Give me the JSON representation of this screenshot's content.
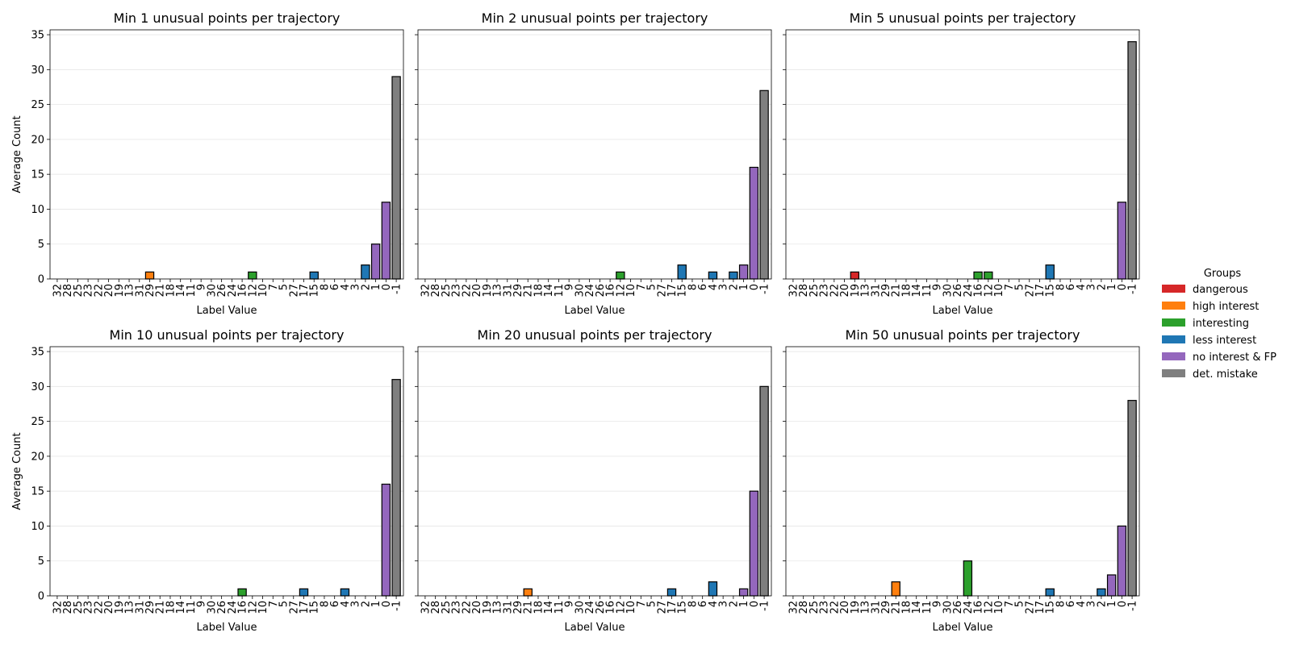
{
  "legend": {
    "title": "Groups",
    "placement": "right-center",
    "items": [
      {
        "label": "dangerous",
        "color": "#d62728"
      },
      {
        "label": "high interest",
        "color": "#ff7f0e"
      },
      {
        "label": "interesting",
        "color": "#2ca02c"
      },
      {
        "label": "less interest",
        "color": "#1f77b4"
      },
      {
        "label": "no interest & FP",
        "color": "#9467bd"
      },
      {
        "label": "det. mistake",
        "color": "#7f7f7f"
      }
    ]
  },
  "chart_data": [
    {
      "type": "bar",
      "title": "Min 1 unusual points per trajectory",
      "xlabel": "Label Value",
      "ylabel": "Average Count",
      "ylim": [
        0,
        35.7
      ],
      "yticks": [
        0,
        5,
        10,
        15,
        20,
        25,
        30,
        35
      ],
      "grid": "y",
      "categories": [
        "32",
        "28",
        "25",
        "23",
        "22",
        "20",
        "19",
        "13",
        "31",
        "29",
        "21",
        "18",
        "14",
        "11",
        "9",
        "30",
        "26",
        "24",
        "16",
        "12",
        "10",
        "7",
        "5",
        "27",
        "17",
        "15",
        "8",
        "6",
        "4",
        "3",
        "2",
        "1",
        "0",
        "-1"
      ],
      "values": [
        0,
        0,
        0,
        0,
        0,
        0,
        0,
        0,
        0,
        1,
        0,
        0,
        0,
        0,
        0,
        0,
        0,
        0,
        0,
        1,
        0,
        0,
        0,
        0,
        0,
        1,
        0,
        0,
        0,
        0,
        2,
        5,
        11,
        29
      ],
      "groups": [
        "interesting",
        "less interest",
        "less interest",
        "less interest",
        "less interest",
        "less interest",
        "dangerous",
        "less interest",
        "less interest",
        "high interest",
        "high interest",
        "high interest",
        "less interest",
        "less interest",
        "less interest",
        "less interest",
        "less interest",
        "interesting",
        "interesting",
        "interesting",
        "less interest",
        "less interest",
        "less interest",
        "less interest",
        "less interest",
        "less interest",
        "less interest",
        "less interest",
        "less interest",
        "less interest",
        "less interest",
        "no interest & FP",
        "no interest & FP",
        "det. mistake"
      ]
    },
    {
      "type": "bar",
      "title": "Min 2 unusual points per trajectory",
      "xlabel": "Label Value",
      "ylabel": "",
      "ylim": [
        0,
        35.7
      ],
      "yticks": [
        0,
        5,
        10,
        15,
        20,
        25,
        30,
        35
      ],
      "grid": "y",
      "categories": [
        "32",
        "28",
        "25",
        "23",
        "22",
        "20",
        "19",
        "13",
        "31",
        "29",
        "21",
        "18",
        "14",
        "11",
        "9",
        "30",
        "24",
        "26",
        "16",
        "12",
        "10",
        "7",
        "5",
        "27",
        "17",
        "15",
        "8",
        "6",
        "4",
        "3",
        "2",
        "1",
        "0",
        "-1"
      ],
      "values": [
        0,
        0,
        0,
        0,
        0,
        0,
        0,
        0,
        0,
        0,
        0,
        0,
        0,
        0,
        0,
        0,
        0,
        0,
        0,
        1,
        0,
        0,
        0,
        0,
        0,
        2,
        0,
        0,
        1,
        0,
        1,
        2,
        16,
        27
      ],
      "groups": [
        "interesting",
        "less interest",
        "less interest",
        "less interest",
        "less interest",
        "less interest",
        "dangerous",
        "less interest",
        "less interest",
        "high interest",
        "high interest",
        "high interest",
        "less interest",
        "less interest",
        "less interest",
        "less interest",
        "interesting",
        "less interest",
        "interesting",
        "interesting",
        "less interest",
        "less interest",
        "less interest",
        "less interest",
        "less interest",
        "less interest",
        "less interest",
        "less interest",
        "less interest",
        "less interest",
        "less interest",
        "no interest & FP",
        "no interest & FP",
        "det. mistake"
      ]
    },
    {
      "type": "bar",
      "title": "Min 5 unusual points per trajectory",
      "xlabel": "Label Value",
      "ylabel": "",
      "ylim": [
        0,
        35.7
      ],
      "yticks": [
        0,
        5,
        10,
        15,
        20,
        25,
        30,
        35
      ],
      "grid": "y",
      "categories": [
        "32",
        "28",
        "25",
        "23",
        "22",
        "20",
        "19",
        "13",
        "31",
        "29",
        "21",
        "18",
        "14",
        "11",
        "9",
        "30",
        "26",
        "24",
        "16",
        "12",
        "10",
        "7",
        "5",
        "27",
        "17",
        "15",
        "8",
        "6",
        "4",
        "3",
        "2",
        "1",
        "0",
        "-1"
      ],
      "values": [
        0,
        0,
        0,
        0,
        0,
        0,
        1,
        0,
        0,
        0,
        0,
        0,
        0,
        0,
        0,
        0,
        0,
        0,
        1,
        1,
        0,
        0,
        0,
        0,
        0,
        2,
        0,
        0,
        0,
        0,
        0,
        0,
        11,
        34
      ],
      "groups": [
        "interesting",
        "less interest",
        "less interest",
        "less interest",
        "less interest",
        "less interest",
        "dangerous",
        "less interest",
        "less interest",
        "high interest",
        "high interest",
        "high interest",
        "less interest",
        "less interest",
        "less interest",
        "less interest",
        "less interest",
        "interesting",
        "interesting",
        "interesting",
        "less interest",
        "less interest",
        "less interest",
        "less interest",
        "less interest",
        "less interest",
        "less interest",
        "less interest",
        "less interest",
        "less interest",
        "less interest",
        "no interest & FP",
        "no interest & FP",
        "det. mistake"
      ]
    },
    {
      "type": "bar",
      "title": "Min 10 unusual points per trajectory",
      "xlabel": "Label Value",
      "ylabel": "Average Count",
      "ylim": [
        0,
        35.7
      ],
      "yticks": [
        0,
        5,
        10,
        15,
        20,
        25,
        30,
        35
      ],
      "grid": "y",
      "categories": [
        "32",
        "28",
        "25",
        "23",
        "22",
        "20",
        "19",
        "13",
        "31",
        "29",
        "21",
        "18",
        "14",
        "11",
        "9",
        "30",
        "26",
        "24",
        "16",
        "12",
        "10",
        "7",
        "5",
        "27",
        "17",
        "15",
        "8",
        "6",
        "4",
        "3",
        "2",
        "1",
        "0",
        "-1"
      ],
      "values": [
        0,
        0,
        0,
        0,
        0,
        0,
        0,
        0,
        0,
        0,
        0,
        0,
        0,
        0,
        0,
        0,
        0,
        0,
        1,
        0,
        0,
        0,
        0,
        0,
        1,
        0,
        0,
        0,
        1,
        0,
        0,
        0,
        16,
        31
      ],
      "groups": [
        "interesting",
        "less interest",
        "less interest",
        "less interest",
        "less interest",
        "less interest",
        "dangerous",
        "less interest",
        "less interest",
        "high interest",
        "high interest",
        "high interest",
        "less interest",
        "less interest",
        "less interest",
        "less interest",
        "less interest",
        "interesting",
        "interesting",
        "interesting",
        "less interest",
        "less interest",
        "less interest",
        "less interest",
        "less interest",
        "less interest",
        "less interest",
        "less interest",
        "less interest",
        "less interest",
        "less interest",
        "no interest & FP",
        "no interest & FP",
        "det. mistake"
      ]
    },
    {
      "type": "bar",
      "title": "Min 20 unusual points per trajectory",
      "xlabel": "Label Value",
      "ylabel": "",
      "ylim": [
        0,
        35.7
      ],
      "yticks": [
        0,
        5,
        10,
        15,
        20,
        25,
        30,
        35
      ],
      "grid": "y",
      "categories": [
        "32",
        "28",
        "25",
        "23",
        "22",
        "20",
        "19",
        "13",
        "31",
        "29",
        "21",
        "18",
        "14",
        "11",
        "9",
        "30",
        "24",
        "26",
        "16",
        "12",
        "10",
        "7",
        "5",
        "27",
        "17",
        "15",
        "8",
        "6",
        "4",
        "3",
        "2",
        "1",
        "0",
        "-1"
      ],
      "values": [
        0,
        0,
        0,
        0,
        0,
        0,
        0,
        0,
        0,
        0,
        1,
        0,
        0,
        0,
        0,
        0,
        0,
        0,
        0,
        0,
        0,
        0,
        0,
        0,
        1,
        0,
        0,
        0,
        2,
        0,
        0,
        1,
        15,
        30
      ],
      "groups": [
        "interesting",
        "less interest",
        "less interest",
        "less interest",
        "less interest",
        "less interest",
        "dangerous",
        "less interest",
        "less interest",
        "high interest",
        "high interest",
        "high interest",
        "less interest",
        "less interest",
        "less interest",
        "less interest",
        "interesting",
        "less interest",
        "interesting",
        "interesting",
        "less interest",
        "less interest",
        "less interest",
        "less interest",
        "less interest",
        "less interest",
        "less interest",
        "less interest",
        "less interest",
        "less interest",
        "less interest",
        "no interest & FP",
        "no interest & FP",
        "det. mistake"
      ]
    },
    {
      "type": "bar",
      "title": "Min 50 unusual points per trajectory",
      "xlabel": "Label Value",
      "ylabel": "",
      "ylim": [
        0,
        35.7
      ],
      "yticks": [
        0,
        5,
        10,
        15,
        20,
        25,
        30,
        35
      ],
      "grid": "y",
      "categories": [
        "32",
        "28",
        "25",
        "23",
        "22",
        "20",
        "19",
        "13",
        "31",
        "29",
        "21",
        "18",
        "14",
        "11",
        "9",
        "30",
        "26",
        "24",
        "16",
        "12",
        "10",
        "7",
        "5",
        "27",
        "17",
        "15",
        "8",
        "6",
        "4",
        "3",
        "2",
        "1",
        "0",
        "-1"
      ],
      "values": [
        0,
        0,
        0,
        0,
        0,
        0,
        0,
        0,
        0,
        0,
        2,
        0,
        0,
        0,
        0,
        0,
        0,
        5,
        0,
        0,
        0,
        0,
        0,
        0,
        0,
        1,
        0,
        0,
        0,
        0,
        1,
        3,
        10,
        28
      ],
      "groups": [
        "interesting",
        "less interest",
        "less interest",
        "less interest",
        "less interest",
        "less interest",
        "dangerous",
        "less interest",
        "less interest",
        "high interest",
        "high interest",
        "high interest",
        "less interest",
        "less interest",
        "less interest",
        "less interest",
        "less interest",
        "interesting",
        "interesting",
        "interesting",
        "less interest",
        "less interest",
        "less interest",
        "less interest",
        "less interest",
        "less interest",
        "less interest",
        "less interest",
        "less interest",
        "less interest",
        "less interest",
        "no interest & FP",
        "no interest & FP",
        "det. mistake"
      ]
    }
  ]
}
